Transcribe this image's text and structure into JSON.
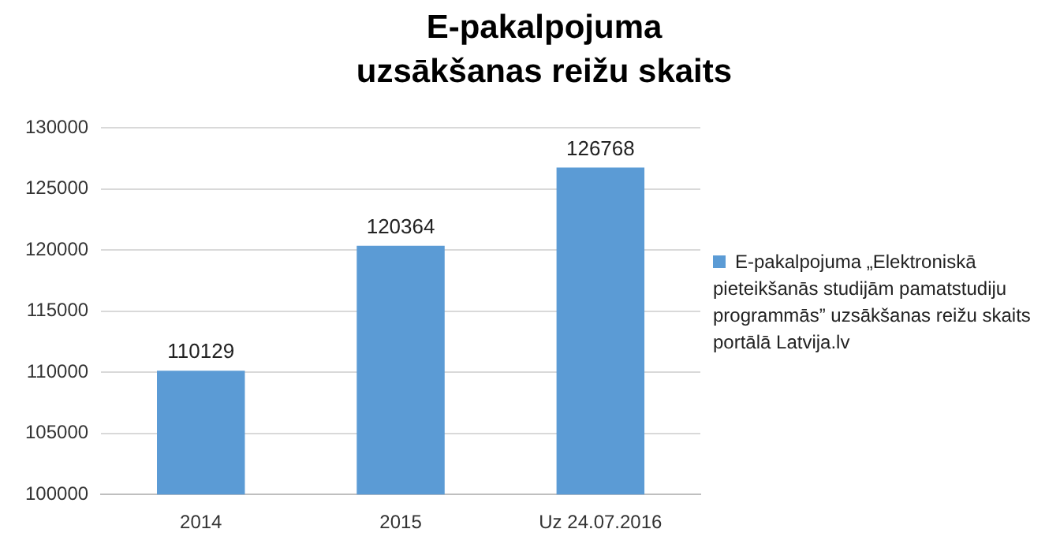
{
  "chart_data": {
    "type": "bar",
    "title": "E-pakalpojuma uzsākšanas reižu skaits",
    "categories": [
      "2014",
      "2015",
      "Uz 24.07.2016"
    ],
    "series": [
      {
        "name": "E-pakalpojuma  „Elektroniskā pieteikšanās studijām pamatstudiju programmās” uzsākšanas reižu skaits portālā Latvija.lv",
        "color": "#5b9bd5",
        "values": [
          110129,
          120364,
          126768
        ]
      }
    ],
    "ylim": [
      100000,
      130000
    ],
    "yticks": [
      100000,
      105000,
      110000,
      115000,
      120000,
      125000,
      130000
    ],
    "grid": "y",
    "legend": "right",
    "data_labels": true
  }
}
